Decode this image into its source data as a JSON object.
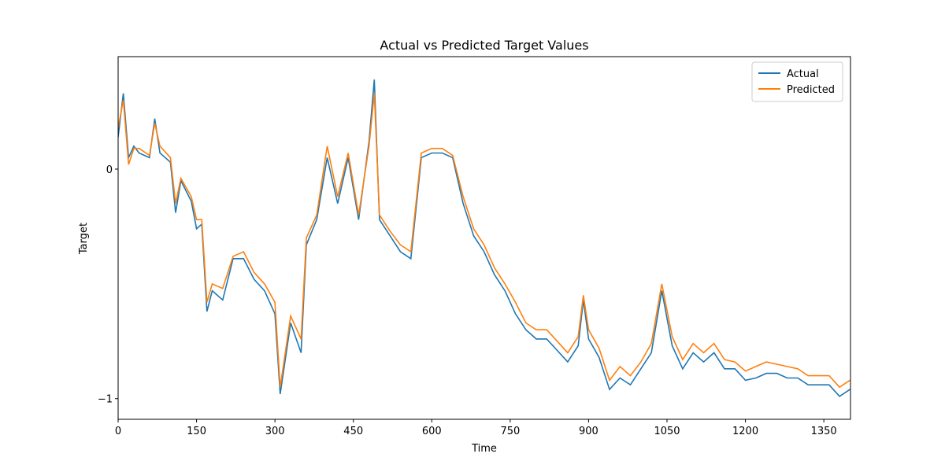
{
  "chart_data": {
    "type": "line",
    "title": "Actual vs Predicted Target Values",
    "xlabel": "Time",
    "ylabel": "Target",
    "x": [
      0,
      10,
      20,
      30,
      40,
      60,
      70,
      80,
      100,
      110,
      120,
      140,
      150,
      160,
      170,
      180,
      200,
      220,
      240,
      260,
      280,
      300,
      310,
      330,
      350,
      360,
      380,
      400,
      420,
      440,
      460,
      480,
      490,
      500,
      520,
      540,
      560,
      580,
      600,
      620,
      640,
      660,
      680,
      700,
      720,
      740,
      760,
      780,
      800,
      820,
      840,
      860,
      880,
      890,
      900,
      920,
      940,
      960,
      980,
      1000,
      1020,
      1040,
      1060,
      1080,
      1100,
      1120,
      1140,
      1160,
      1180,
      1200,
      1220,
      1240,
      1260,
      1280,
      1300,
      1320,
      1340,
      1360,
      1380,
      1400
    ],
    "series": [
      {
        "name": "Actual",
        "color": "#1f77b4",
        "values": [
          0.14,
          0.33,
          0.05,
          0.1,
          0.07,
          0.05,
          0.22,
          0.07,
          0.03,
          -0.19,
          -0.05,
          -0.14,
          -0.26,
          -0.24,
          -0.62,
          -0.53,
          -0.57,
          -0.39,
          -0.39,
          -0.48,
          -0.53,
          -0.63,
          -0.98,
          -0.67,
          -0.8,
          -0.33,
          -0.22,
          0.05,
          -0.15,
          0.05,
          -0.22,
          0.12,
          0.39,
          -0.22,
          -0.29,
          -0.36,
          -0.39,
          0.05,
          0.07,
          0.07,
          0.05,
          -0.15,
          -0.29,
          -0.36,
          -0.46,
          -0.53,
          -0.63,
          -0.7,
          -0.74,
          -0.74,
          -0.79,
          -0.84,
          -0.77,
          -0.57,
          -0.74,
          -0.82,
          -0.96,
          -0.91,
          -0.94,
          -0.87,
          -0.8,
          -0.53,
          -0.77,
          -0.87,
          -0.8,
          -0.84,
          -0.8,
          -0.87,
          -0.87,
          -0.92,
          -0.91,
          -0.89,
          -0.89,
          -0.91,
          -0.91,
          -0.94,
          -0.94,
          -0.94,
          -0.99,
          -0.96
        ]
      },
      {
        "name": "Predicted",
        "color": "#ff7f0e",
        "values": [
          0.18,
          0.3,
          0.02,
          0.09,
          0.09,
          0.06,
          0.2,
          0.1,
          0.05,
          -0.15,
          -0.04,
          -0.12,
          -0.22,
          -0.22,
          -0.58,
          -0.5,
          -0.52,
          -0.38,
          -0.36,
          -0.45,
          -0.5,
          -0.58,
          -0.95,
          -0.64,
          -0.74,
          -0.3,
          -0.2,
          0.1,
          -0.12,
          0.07,
          -0.2,
          0.1,
          0.33,
          -0.2,
          -0.27,
          -0.33,
          -0.36,
          0.07,
          0.09,
          0.09,
          0.06,
          -0.12,
          -0.26,
          -0.33,
          -0.43,
          -0.5,
          -0.58,
          -0.67,
          -0.7,
          -0.7,
          -0.75,
          -0.8,
          -0.73,
          -0.55,
          -0.7,
          -0.78,
          -0.92,
          -0.86,
          -0.9,
          -0.84,
          -0.76,
          -0.5,
          -0.73,
          -0.83,
          -0.76,
          -0.8,
          -0.76,
          -0.83,
          -0.84,
          -0.88,
          -0.86,
          -0.84,
          -0.85,
          -0.86,
          -0.87,
          -0.9,
          -0.9,
          -0.9,
          -0.95,
          -0.92
        ]
      }
    ],
    "xlim": [
      0,
      1401
    ],
    "ylim": [
      -1.09,
      0.49
    ],
    "xticks": [
      0,
      150,
      300,
      450,
      600,
      750,
      900,
      1050,
      1200,
      1350
    ],
    "yticks": [
      {
        "value": -1,
        "label": "−1"
      },
      0
    ],
    "legend": "upper right"
  }
}
